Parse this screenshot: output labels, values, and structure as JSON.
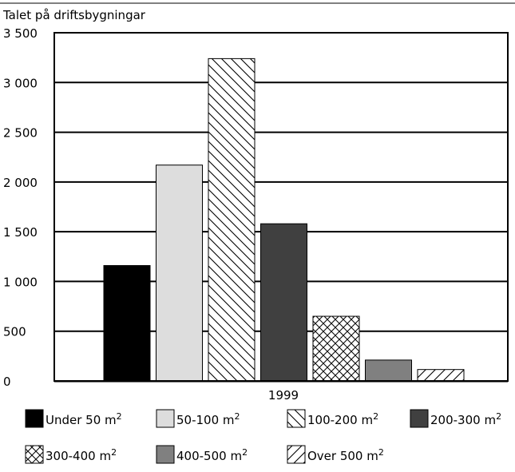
{
  "chart_data": {
    "type": "bar",
    "ylabel": "Talet på driftsbygningar",
    "categories": [
      "1999"
    ],
    "ylim": [
      0,
      3500
    ],
    "yticks": [
      0,
      500,
      1000,
      1500,
      2000,
      2500,
      3000,
      3500
    ],
    "ytick_labels": [
      "0",
      "500",
      "1 000",
      "1 500",
      "2 000",
      "2 500",
      "3 000",
      "3 500"
    ],
    "grid": true,
    "legend_position": "bottom",
    "series": [
      {
        "name": "Under 50 m²",
        "label_base": "Under 50 m",
        "values": [
          1160
        ],
        "pattern": "solid-black"
      },
      {
        "name": "50-100 m²",
        "label_base": "50-100 m",
        "values": [
          2170
        ],
        "pattern": "solid-lightgray"
      },
      {
        "name": "100-200 m²",
        "label_base": "100-200 m",
        "values": [
          3240
        ],
        "pattern": "hatch-backslash"
      },
      {
        "name": "200-300 m²",
        "label_base": "200-300 m",
        "values": [
          1580
        ],
        "pattern": "solid-darkgray"
      },
      {
        "name": "300-400 m²",
        "label_base": "300-400 m",
        "values": [
          650
        ],
        "pattern": "crosshatch"
      },
      {
        "name": "400-500 m²",
        "label_base": "400-500 m",
        "values": [
          210
        ],
        "pattern": "solid-gray"
      },
      {
        "name": "Over 500 m²",
        "label_base": "Over 500 m",
        "values": [
          115
        ],
        "pattern": "hatch-slash"
      }
    ],
    "unit_superscript": "2"
  },
  "colors": {
    "black": "#000000",
    "lightgray": "#dddddd",
    "darkgray": "#404040",
    "gray": "#808080"
  }
}
